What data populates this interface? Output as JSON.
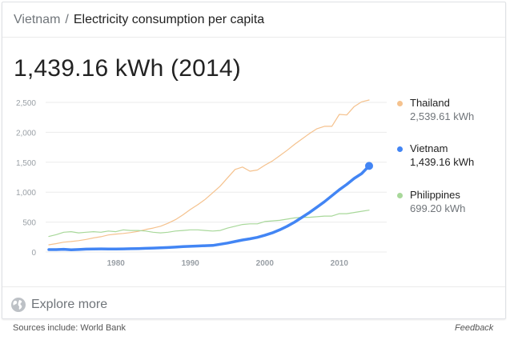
{
  "breadcrumb": {
    "root": "Vietnam",
    "separator": "/",
    "title": "Electricity consumption per capita"
  },
  "headline": {
    "value": "1,439.16 kWh (2014)"
  },
  "footer": {
    "explore_label": "Explore more",
    "sources": "Sources include: World Bank",
    "feedback": "Feedback"
  },
  "colors": {
    "thailand": "#f5c28e",
    "vietnam": "#4285f4",
    "philippines": "#a8d89a",
    "grid": "#ebebeb",
    "tick": "#9aa0a6"
  },
  "chart_data": {
    "type": "line",
    "xlim": [
      1971,
      2014
    ],
    "ylim": [
      0,
      2500
    ],
    "x_ticks": [
      1980,
      1990,
      2000,
      2010
    ],
    "x_tick_labels": [
      "1980",
      "1990",
      "2000",
      "2010"
    ],
    "y_ticks": [
      0,
      500,
      1000,
      1500,
      2000,
      2500
    ],
    "y_tick_labels": [
      "0",
      "500",
      "1,000",
      "1,500",
      "2,000",
      "2,500"
    ],
    "grid": true,
    "legend": "right",
    "series": [
      {
        "name": "Thailand",
        "color_key": "thailand",
        "value_label": "2,539.61 kWh",
        "x": [
          1971,
          1972,
          1973,
          1974,
          1975,
          1976,
          1977,
          1978,
          1979,
          1980,
          1981,
          1982,
          1983,
          1984,
          1985,
          1986,
          1987,
          1988,
          1989,
          1990,
          1991,
          1992,
          1993,
          1994,
          1995,
          1996,
          1997,
          1998,
          1999,
          2000,
          2001,
          2002,
          2003,
          2004,
          2005,
          2006,
          2007,
          2008,
          2009,
          2010,
          2011,
          2012,
          2013,
          2014
        ],
        "y": [
          120,
          140,
          165,
          175,
          190,
          210,
          235,
          255,
          285,
          300,
          310,
          325,
          345,
          375,
          400,
          430,
          480,
          540,
          620,
          710,
          790,
          880,
          990,
          1100,
          1240,
          1380,
          1420,
          1350,
          1370,
          1450,
          1520,
          1610,
          1700,
          1800,
          1890,
          1980,
          2060,
          2100,
          2100,
          2300,
          2290,
          2430,
          2510,
          2540
        ]
      },
      {
        "name": "Vietnam",
        "color_key": "vietnam",
        "value_label": "1,439.16 kWh",
        "x": [
          1971,
          1972,
          1973,
          1974,
          1975,
          1976,
          1977,
          1978,
          1979,
          1980,
          1981,
          1982,
          1983,
          1984,
          1985,
          1986,
          1987,
          1988,
          1989,
          1990,
          1991,
          1992,
          1993,
          1994,
          1995,
          1996,
          1997,
          1998,
          1999,
          2000,
          2001,
          2002,
          2003,
          2004,
          2005,
          2006,
          2007,
          2008,
          2009,
          2010,
          2011,
          2012,
          2013,
          2014
        ],
        "y": [
          40,
          40,
          45,
          38,
          42,
          48,
          50,
          52,
          50,
          50,
          52,
          55,
          58,
          62,
          65,
          70,
          75,
          82,
          90,
          95,
          100,
          105,
          110,
          130,
          150,
          175,
          200,
          220,
          245,
          280,
          320,
          370,
          430,
          500,
          580,
          660,
          750,
          840,
          940,
          1040,
          1130,
          1230,
          1310,
          1439.16
        ]
      },
      {
        "name": "Philippines",
        "color_key": "philippines",
        "value_label": "699.20 kWh",
        "x": [
          1971,
          1972,
          1973,
          1974,
          1975,
          1976,
          1977,
          1978,
          1979,
          1980,
          1981,
          1982,
          1983,
          1984,
          1985,
          1986,
          1987,
          1988,
          1989,
          1990,
          1991,
          1992,
          1993,
          1994,
          1995,
          1996,
          1997,
          1998,
          1999,
          2000,
          2001,
          2002,
          2003,
          2004,
          2005,
          2006,
          2007,
          2008,
          2009,
          2010,
          2011,
          2012,
          2013,
          2014
        ],
        "y": [
          260,
          290,
          330,
          340,
          320,
          330,
          340,
          330,
          350,
          340,
          370,
          360,
          360,
          350,
          330,
          320,
          330,
          350,
          360,
          370,
          370,
          360,
          350,
          360,
          400,
          430,
          460,
          470,
          470,
          510,
          520,
          530,
          550,
          570,
          580,
          580,
          590,
          600,
          600,
          640,
          640,
          660,
          680,
          699.2
        ]
      }
    ]
  }
}
